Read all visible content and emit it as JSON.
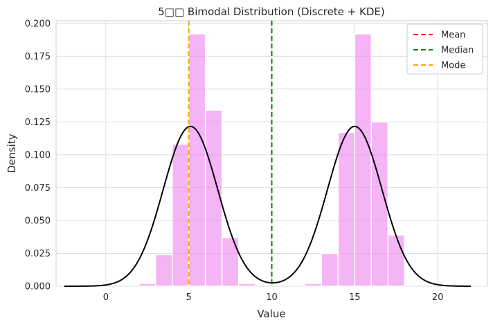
{
  "chart_data": {
    "type": "bar",
    "title": "5□□ Bimodal Distribution (Discrete + KDE)",
    "xlabel": "Value",
    "ylabel": "Density",
    "xlim": [
      -3,
      23
    ],
    "ylim": [
      0,
      0.202
    ],
    "xticks": [
      0,
      5,
      10,
      15,
      20
    ],
    "yticks": [
      0.0,
      0.025,
      0.05,
      0.075,
      0.1,
      0.125,
      0.15,
      0.175,
      0.2
    ],
    "grid": true,
    "legend_position": "top-right",
    "histogram": {
      "color": "#ee82ee",
      "bins": [
        {
          "x0": 2,
          "x1": 3,
          "value": 0.002
        },
        {
          "x0": 3,
          "x1": 4,
          "value": 0.024
        },
        {
          "x0": 4,
          "x1": 5,
          "value": 0.108
        },
        {
          "x0": 5,
          "x1": 6,
          "value": 0.192
        },
        {
          "x0": 6,
          "x1": 7,
          "value": 0.134
        },
        {
          "x0": 7,
          "x1": 8,
          "value": 0.037
        },
        {
          "x0": 8,
          "x1": 9,
          "value": 0.002
        },
        {
          "x0": 12,
          "x1": 13,
          "value": 0.002
        },
        {
          "x0": 13,
          "x1": 14,
          "value": 0.025
        },
        {
          "x0": 14,
          "x1": 15,
          "value": 0.117
        },
        {
          "x0": 15,
          "x1": 16,
          "value": 0.192
        },
        {
          "x0": 16,
          "x1": 17,
          "value": 0.125
        },
        {
          "x0": 17,
          "x1": 18,
          "value": 0.039
        }
      ]
    },
    "kde": {
      "color": "#000000",
      "peaks": [
        5.1,
        15.0
      ],
      "peak_density": 0.1216,
      "sd": 1.64,
      "x_range": [
        -2.5,
        22.0
      ]
    },
    "reference_lines": [
      {
        "name": "Mean",
        "x": 10,
        "color": "#ff0000"
      },
      {
        "name": "Median",
        "x": 10,
        "color": "#008000"
      },
      {
        "name": "Mode",
        "x": 5,
        "color": "#ffa500"
      }
    ]
  }
}
